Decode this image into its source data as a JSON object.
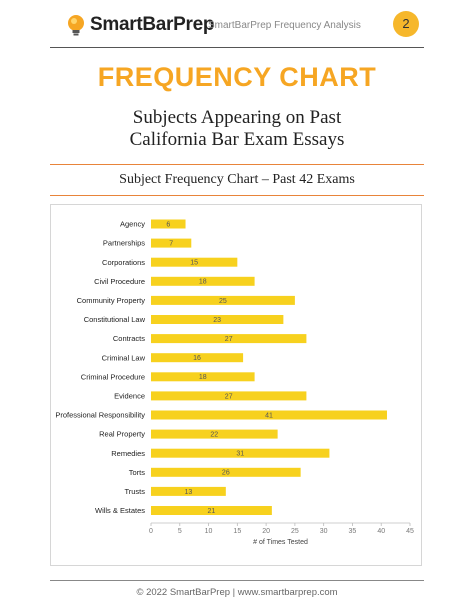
{
  "header": {
    "brand": "SmartBarPrep",
    "title": "SmartBarPrep Frequency Analysis",
    "page_number": "2"
  },
  "main_title": "FREQUENCY CHART",
  "subtitle_lines": [
    "Subjects Appearing on Past",
    "California Bar Exam Essays"
  ],
  "footer": "© 2022 SmartBarPrep  |  www.smartbarprep.com",
  "colors": {
    "bar": "#f7d11e",
    "accent": "#f6a623",
    "badge": "#f6b72b"
  },
  "chart_data": {
    "type": "bar",
    "orientation": "horizontal",
    "title": "Subject Frequency Chart – Past 42 Exams",
    "xlabel": "# of Times Tested",
    "ylabel": "",
    "xlim": [
      0,
      45
    ],
    "xticks": [
      0,
      5,
      10,
      15,
      20,
      25,
      30,
      35,
      40,
      45
    ],
    "grid": false,
    "categories": [
      "Agency",
      "Partnerships",
      "Corporations",
      "Civil Procedure",
      "Community Property",
      "Constitutional Law",
      "Contracts",
      "Criminal Law",
      "Criminal Procedure",
      "Evidence",
      "Professional Responsibility",
      "Real Property",
      "Remedies",
      "Torts",
      "Trusts",
      "Wills & Estates"
    ],
    "values": [
      6,
      7,
      15,
      18,
      25,
      23,
      27,
      16,
      18,
      27,
      41,
      22,
      31,
      26,
      13,
      21
    ]
  }
}
